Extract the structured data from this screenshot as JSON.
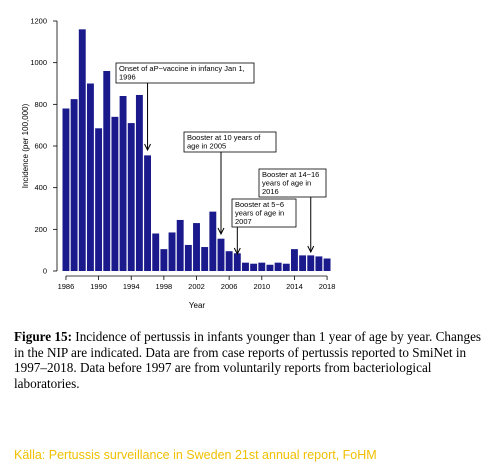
{
  "chart_data": {
    "type": "bar",
    "categories": [
      "1986",
      "1987",
      "1988",
      "1989",
      "1990",
      "1991",
      "1992",
      "1993",
      "1994",
      "1995",
      "1996",
      "1997",
      "1998",
      "1999",
      "2000",
      "2001",
      "2002",
      "2003",
      "2004",
      "2005",
      "2006",
      "2007",
      "2008",
      "2009",
      "2010",
      "2011",
      "2012",
      "2013",
      "2014",
      "2015",
      "2016",
      "2017",
      "2018"
    ],
    "values": [
      780,
      825,
      1160,
      900,
      685,
      960,
      740,
      840,
      710,
      845,
      555,
      180,
      105,
      185,
      245,
      125,
      230,
      115,
      285,
      155,
      95,
      85,
      40,
      35,
      40,
      30,
      40,
      35,
      105,
      75,
      75,
      70,
      60
    ],
    "ylabel": "Incidence (per 100,000)",
    "xlabel": "Year",
    "ylim": [
      0,
      1200
    ],
    "yticks": [
      "0",
      "200",
      "400",
      "600",
      "800",
      "1000",
      "1200"
    ],
    "xticks": [
      "1986",
      "1990",
      "1994",
      "1998",
      "2002",
      "2006",
      "2010",
      "2014",
      "2018"
    ],
    "bar_color": "#1a1a8c",
    "grid": false,
    "annotations": [
      {
        "lines": [
          "Onset of aP−vaccine in infancy Jan 1,",
          "1996"
        ],
        "year": "1996"
      },
      {
        "lines": [
          "Booster at 10 years of",
          "age in 2005"
        ],
        "year": "2005"
      },
      {
        "lines": [
          "Booster at 5−6",
          "years of age in",
          "2007"
        ],
        "year": "2007"
      },
      {
        "lines": [
          "Booster at 14−16",
          "years of age in",
          "2016"
        ],
        "year": "2016"
      }
    ]
  },
  "caption": {
    "label": "Figure 15:",
    "text": " Incidence of pertussis in infants younger than 1 year of age by year. Changes in the NIP are indicated. Data are from case reports of pertussis reported to SmiNet in 1997–2018. Data before 1997 are from voluntarily reports from bacteriological laboratories."
  },
  "source": "Källa: Pertussis surveillance in Sweden 21st annual report, FoHM",
  "colors": {
    "bar": "#1a1a8c",
    "source_text": "#f0c000"
  }
}
